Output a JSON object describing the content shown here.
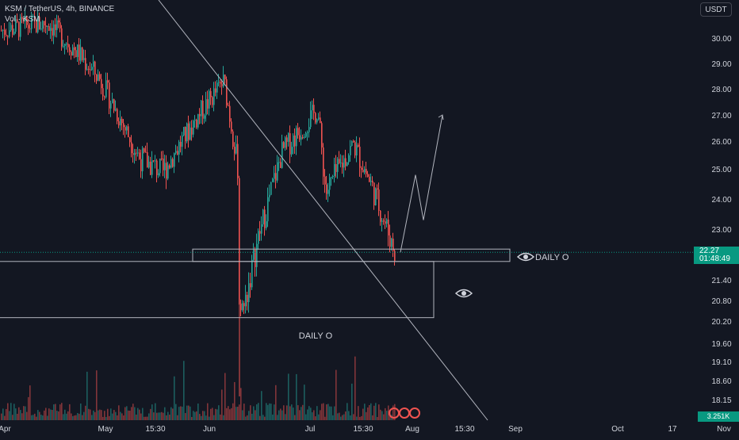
{
  "header": {
    "symbol": "KSM / TetherUS, 4h, BINANCE",
    "volume_label": "Vol · KSM",
    "currency_button": "USDT"
  },
  "price_tag": {
    "price": "22.27",
    "countdown": "01:48:49"
  },
  "volume_tag": "3.251K",
  "annotations": {
    "daily_box_label": "DAILY O",
    "daily_level_label": "DAILY O",
    "eye_icon": "eye-icon"
  },
  "colors": {
    "background": "#131722",
    "up": "#26a69a",
    "down": "#ef5350",
    "text": "#d1d4dc",
    "price_tag": "#089981"
  },
  "chart_data": {
    "type": "candlestick",
    "title": "",
    "xlabel": "",
    "ylabel": "",
    "x_ticks": [
      "Apr",
      "May",
      "15:30",
      "Jun",
      "Jul",
      "15:30",
      "Aug",
      "15:30",
      "Sep",
      "Oct",
      "17",
      "Nov"
    ],
    "y_ticks": [
      "30.00",
      "29.00",
      "28.00",
      "27.00",
      "26.00",
      "25.00",
      "24.00",
      "23.00",
      "21.40",
      "20.80",
      "20.20",
      "19.60",
      "19.10",
      "18.60",
      "18.15"
    ],
    "last_price": 22.27,
    "approx_path": [
      {
        "t": "Apr",
        "p": 30.3
      },
      {
        "t": "mid-Apr",
        "p": 30.6
      },
      {
        "t": "late-Apr",
        "p": 29.5
      },
      {
        "t": "early-May",
        "p": 28.4
      },
      {
        "t": "May",
        "p": 25.4
      },
      {
        "t": "15:30",
        "p": 24.9
      },
      {
        "t": "late-May",
        "p": 27.0
      },
      {
        "t": "end-May",
        "p": 28.3
      },
      {
        "t": "Jun",
        "p": 24.9
      },
      {
        "t": "early-Jun",
        "p": 20.5
      },
      {
        "t": "mid-Jun",
        "p": 22.7
      },
      {
        "t": "late-Jun",
        "p": 25.6
      },
      {
        "t": "Jul",
        "p": 27.2
      },
      {
        "t": "early-Jul",
        "p": 24.2
      },
      {
        "t": "15:30",
        "p": 25.9
      },
      {
        "t": "mid-Jul",
        "p": 24.3
      },
      {
        "t": "late-Jul",
        "p": 22.3
      }
    ],
    "zones": [
      {
        "label": "DAILY O",
        "from": 20.3,
        "to": 21.98
      },
      {
        "label": "DAILY O",
        "from": 21.98,
        "to": 22.37
      }
    ],
    "projection": [
      22.27,
      24.8,
      23.3,
      27.0
    ],
    "grid": false,
    "legend": "none"
  }
}
